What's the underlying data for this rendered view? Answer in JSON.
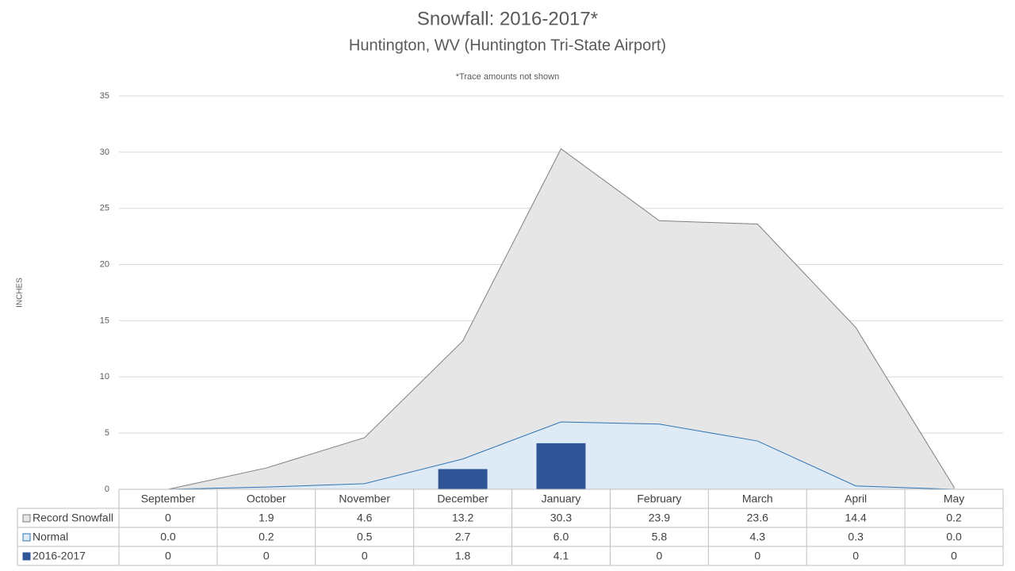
{
  "chart_data": {
    "type": "area",
    "title": "Snowfall: 2016-2017*",
    "subtitle": "Huntington, WV (Huntington Tri-State Airport)",
    "note": "*Trace amounts not shown",
    "y_label": "INCHES",
    "categories": [
      "September",
      "October",
      "November",
      "December",
      "January",
      "February",
      "March",
      "April",
      "May"
    ],
    "series": [
      {
        "name": "Record Snowfall",
        "type": "area",
        "color": "#e7e6e6",
        "line_color": "#7f7f7f",
        "values": [
          0,
          1.9,
          4.6,
          13.2,
          30.3,
          23.9,
          23.6,
          14.4,
          0.2
        ]
      },
      {
        "name": "Normal",
        "type": "area",
        "color": "#deebf7",
        "line_color": "#2e75b6",
        "values": [
          0,
          0.2,
          0.5,
          2.7,
          6.0,
          5.8,
          4.3,
          0.3,
          0
        ],
        "value_labels": [
          "0.0",
          "0.2",
          "0.5",
          "2.7",
          "6.0",
          "5.8",
          "4.3",
          "0.3",
          "0.0"
        ]
      },
      {
        "name": "2016-2017",
        "type": "bar",
        "color": "#2f5597",
        "values": [
          0,
          0,
          0,
          1.8,
          4.1,
          0,
          0,
          0,
          0
        ]
      }
    ],
    "ylim": [
      0,
      35
    ],
    "yticks": [
      0,
      5,
      10,
      15,
      20,
      25,
      30,
      35
    ],
    "grid": true,
    "data_table": true
  }
}
